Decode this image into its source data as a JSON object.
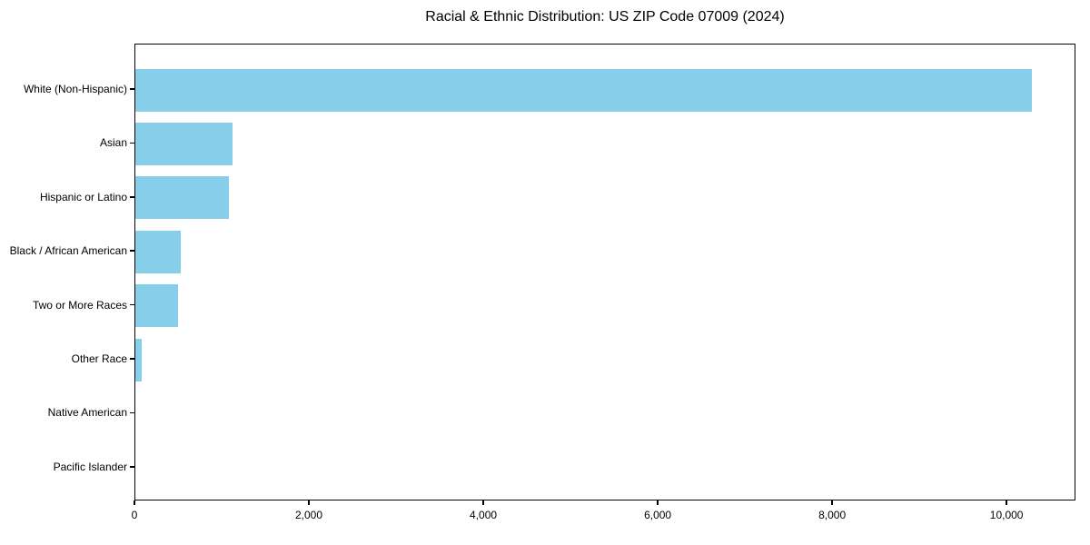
{
  "chart_data": {
    "type": "bar",
    "orientation": "horizontal",
    "title": "Racial & Ethnic Distribution: US ZIP Code 07009 (2024)",
    "categories": [
      "White (Non-Hispanic)",
      "Asian",
      "Hispanic or Latino",
      "Black / African American",
      "Two or More Races",
      "Other Race",
      "Native American",
      "Pacific Islander"
    ],
    "values": [
      10300,
      1115,
      1070,
      520,
      490,
      70,
      0,
      0
    ],
    "xlabel": "",
    "ylabel": "",
    "xlim": [
      0,
      10790
    ],
    "x_ticks": [
      0,
      2000,
      4000,
      6000,
      8000,
      10000
    ],
    "x_tick_labels": [
      "0",
      "2,000",
      "4,000",
      "6,000",
      "8,000",
      "10,000"
    ],
    "bar_color": "#87CEEB",
    "axis_color": "#000000",
    "text_color": "#000000",
    "background_color": "#ffffff",
    "grid": false,
    "legend": null
  }
}
